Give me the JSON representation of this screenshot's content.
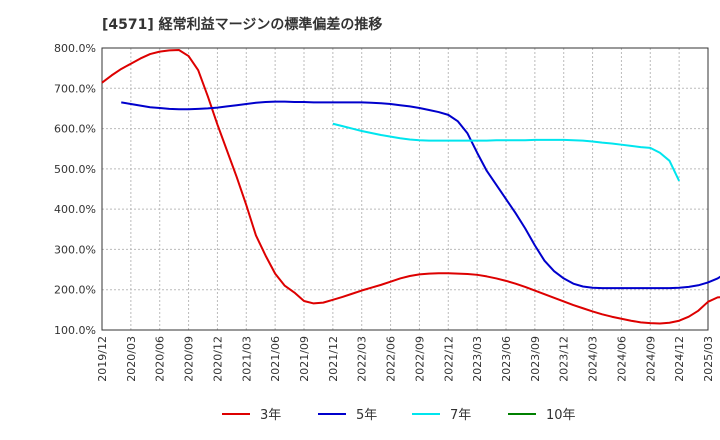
{
  "chart_data": {
    "type": "line",
    "title": "[4571]  経常利益マージンの標準偏差の推移",
    "xlabel": "",
    "ylabel": "",
    "ylim": [
      100,
      800
    ],
    "y_ticks": [
      100,
      200,
      300,
      400,
      500,
      600,
      700,
      800
    ],
    "y_tick_labels": [
      "100.0%",
      "200.0%",
      "300.0%",
      "400.0%",
      "500.0%",
      "600.0%",
      "700.0%",
      "800.0%"
    ],
    "x_tick_labels": [
      "2019/12",
      "2020/03",
      "2020/06",
      "2020/09",
      "2020/12",
      "2021/03",
      "2021/06",
      "2021/09",
      "2021/12",
      "2022/03",
      "2022/06",
      "2022/09",
      "2022/12",
      "2023/03",
      "2023/06",
      "2023/09",
      "2023/12",
      "2024/03",
      "2024/06",
      "2024/09",
      "2024/12",
      "2025/03"
    ],
    "grid": true,
    "legend_position": "bottom",
    "series": [
      {
        "name": "3年",
        "color": "#dd0000",
        "start": "2019/12",
        "values": [
          714,
          732,
          748,
          761,
          774,
          785,
          791,
          794,
          795,
          780,
          745,
          680,
          610,
          545,
          480,
          410,
          335,
          285,
          240,
          210,
          193,
          172,
          166,
          168,
          175,
          182,
          190,
          198,
          205,
          212,
          220,
          228,
          234,
          238,
          240,
          241,
          241,
          240,
          239,
          237,
          233,
          228,
          222,
          215,
          207,
          198,
          189,
          180,
          171,
          162,
          154,
          146,
          139,
          133,
          128,
          123,
          119,
          117,
          116,
          118,
          123,
          133,
          148,
          170,
          181,
          182,
          183,
          185,
          188
        ]
      },
      {
        "name": "5年",
        "color": "#0000cc",
        "start": "2020/02",
        "values": [
          665,
          661,
          657,
          653,
          651,
          649,
          648,
          648,
          649,
          650,
          652,
          655,
          658,
          661,
          664,
          666,
          667,
          667,
          666,
          666,
          665,
          665,
          665,
          665,
          665,
          665,
          664,
          663,
          661,
          658,
          655,
          651,
          646,
          641,
          634,
          618,
          588,
          540,
          495,
          460,
          425,
          390,
          352,
          310,
          272,
          246,
          228,
          215,
          208,
          205,
          204,
          204,
          204,
          204,
          204,
          204,
          204,
          204,
          205,
          207,
          211,
          218,
          228,
          243,
          244,
          242,
          239,
          236
        ]
      },
      {
        "name": "7年",
        "color": "#00e5ee",
        "start": "2021/12",
        "values": [
          612,
          606,
          600,
          594,
          589,
          584,
          580,
          576,
          573,
          571,
          570,
          570,
          570,
          570,
          570,
          570,
          570,
          571,
          571,
          571,
          571,
          572,
          572,
          572,
          572,
          571,
          570,
          568,
          565,
          563,
          560,
          557,
          554,
          552,
          540,
          520,
          470
        ]
      },
      {
        "name": "10年",
        "color": "#008000",
        "start": "",
        "values": []
      }
    ]
  }
}
